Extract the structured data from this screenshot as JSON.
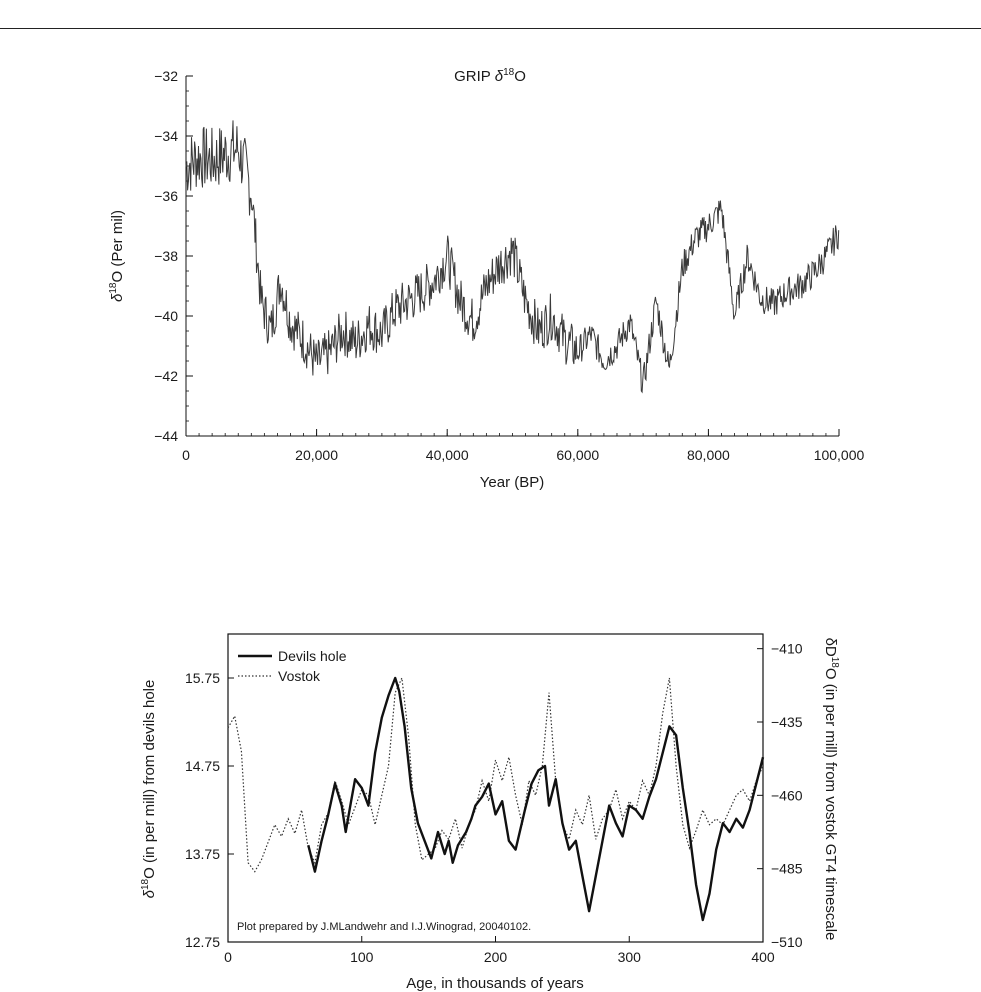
{
  "chart_data": [
    {
      "type": "line",
      "title": "GRIP δ18O",
      "title_parts": {
        "pre": "GRIP ",
        "delta": "δ",
        "sup": "18",
        "post": "O"
      },
      "xlabel": "Year (BP)",
      "ylabel": "δ18O (Per mil)",
      "ylabel_parts": {
        "delta": "δ",
        "sup": "18",
        "post": "O (Per mil)"
      },
      "xlim": [
        0,
        100000
      ],
      "ylim": [
        -44,
        -32
      ],
      "xticks": [
        0,
        20000,
        40000,
        60000,
        80000,
        100000
      ],
      "xtick_labels": [
        "0",
        "20,000",
        "40,000",
        "60,000",
        "80,000",
        "100,000"
      ],
      "yticks": [
        -32,
        -34,
        -36,
        -38,
        -40,
        -42,
        -44
      ],
      "ytick_labels": [
        "−32",
        "−34",
        "−36",
        "−38",
        "−40",
        "−42",
        "−44"
      ],
      "grid": false,
      "line_color": "#3a3a3a",
      "series": [
        {
          "x": [
            0,
            2000,
            4000,
            6000,
            8000,
            10000,
            11500,
            13000,
            14500,
            16000,
            18000,
            20000,
            22000,
            24000,
            26000,
            28000,
            30000,
            32000,
            34000,
            36000,
            38000,
            40000,
            42000,
            44000,
            46000,
            48000,
            50000,
            52000,
            54000,
            56000,
            58000,
            60000,
            62000,
            64000,
            66000,
            68000,
            70000,
            72000,
            74000,
            76000,
            78000,
            80000,
            82000,
            84000,
            86000,
            88000,
            90000,
            92000,
            94000,
            96000,
            98000,
            100000
          ],
          "y": [
            -35.0,
            -34.7,
            -34.8,
            -34.6,
            -34.4,
            -35.8,
            -39.5,
            -40.5,
            -38.8,
            -40.2,
            -40.8,
            -41.6,
            -41.2,
            -40.5,
            -40.9,
            -40.3,
            -40.6,
            -39.8,
            -39.5,
            -39.2,
            -38.8,
            -38.0,
            -39.5,
            -40.2,
            -39.0,
            -38.3,
            -37.8,
            -39.5,
            -40.5,
            -40.0,
            -40.8,
            -41.2,
            -40.6,
            -41.5,
            -41.0,
            -40.2,
            -42.3,
            -39.5,
            -41.8,
            -38.4,
            -37.4,
            -37.0,
            -36.4,
            -40.0,
            -38.0,
            -39.4,
            -39.6,
            -39.2,
            -39.0,
            -38.6,
            -38.0,
            -37.2
          ]
        }
      ]
    },
    {
      "type": "line",
      "xlabel": "Age, in thousands of years",
      "ylabel_left": "δ18O (in per mill) from devils hole",
      "ylabel_left_parts": {
        "delta": "δ",
        "sup": "18",
        "post": "O (in per mill) from devils hole"
      },
      "ylabel_right": "δD18O (in per mill) from vostok GT4 timescale",
      "ylabel_right_parts": {
        "pre": "δD",
        "sup": "18",
        "post": "O (in per mill) from vostok GT4 timescale"
      },
      "xlim": [
        0,
        400
      ],
      "ylim_left": [
        12.75,
        16.25
      ],
      "ylim_right": [
        -510,
        -405
      ],
      "xticks": [
        0,
        100,
        200,
        300,
        400
      ],
      "xtick_labels": [
        "0",
        "100",
        "200",
        "300",
        "400"
      ],
      "yticks_left": [
        12.75,
        13.75,
        14.75,
        15.75
      ],
      "ytick_labels_left": [
        "12.75",
        "13.75",
        "14.75",
        "15.75"
      ],
      "yticks_right": [
        -410,
        -435,
        -460,
        -485,
        -510
      ],
      "ytick_labels_right": [
        "−410",
        "−435",
        "−460",
        "−485",
        "−510"
      ],
      "legend_position": "top-left",
      "annotation": "Plot prepared by J.MLandwehr and I.J.Winograd, 20040102.",
      "grid": false,
      "series": [
        {
          "name": "Devils hole",
          "axis": "left",
          "style": "solid",
          "color": "#111111",
          "x": [
            60,
            65,
            70,
            75,
            80,
            85,
            88,
            92,
            95,
            100,
            105,
            110,
            115,
            120,
            125,
            128,
            132,
            137,
            142,
            147,
            152,
            157,
            162,
            165,
            168,
            172,
            178,
            182,
            185,
            190,
            195,
            200,
            205,
            210,
            215,
            222,
            227,
            232,
            237,
            240,
            245,
            250,
            255,
            260,
            265,
            270,
            275,
            280,
            285,
            290,
            295,
            300,
            305,
            310,
            315,
            320,
            325,
            330,
            335,
            340,
            345,
            350,
            355,
            360,
            365,
            370,
            375,
            380,
            385,
            390,
            395,
            400
          ],
          "y": [
            13.85,
            13.55,
            13.9,
            14.2,
            14.55,
            14.3,
            14.0,
            14.35,
            14.6,
            14.5,
            14.3,
            14.9,
            15.3,
            15.55,
            15.75,
            15.6,
            15.2,
            14.5,
            14.1,
            13.9,
            13.7,
            14.0,
            13.75,
            13.9,
            13.65,
            13.85,
            14.0,
            14.15,
            14.3,
            14.4,
            14.55,
            14.2,
            14.35,
            13.9,
            13.8,
            14.25,
            14.55,
            14.7,
            14.75,
            14.3,
            14.6,
            14.1,
            13.8,
            13.9,
            13.5,
            13.1,
            13.5,
            13.9,
            14.3,
            14.1,
            13.95,
            14.3,
            14.25,
            14.15,
            14.4,
            14.6,
            14.9,
            15.2,
            15.1,
            14.5,
            14.0,
            13.4,
            13.0,
            13.3,
            13.8,
            14.1,
            14.0,
            14.15,
            14.05,
            14.25,
            14.55,
            14.85
          ]
        },
        {
          "name": "Vostok",
          "axis": "right",
          "style": "dotted",
          "color": "#333333",
          "x": [
            0,
            5,
            10,
            15,
            20,
            25,
            30,
            35,
            40,
            45,
            50,
            55,
            60,
            65,
            70,
            75,
            80,
            85,
            90,
            95,
            100,
            105,
            110,
            115,
            120,
            125,
            130,
            135,
            140,
            145,
            150,
            155,
            160,
            165,
            170,
            175,
            180,
            185,
            190,
            195,
            200,
            205,
            210,
            215,
            220,
            225,
            230,
            235,
            240,
            245,
            250,
            255,
            260,
            265,
            270,
            275,
            280,
            285,
            290,
            295,
            300,
            305,
            310,
            315,
            320,
            325,
            330,
            335,
            340,
            345,
            350,
            355,
            360,
            365,
            370,
            375,
            380,
            385,
            390,
            395,
            400
          ],
          "y": [
            -437,
            -433,
            -445,
            -483,
            -486,
            -482,
            -476,
            -470,
            -474,
            -468,
            -473,
            -465,
            -478,
            -483,
            -470,
            -466,
            -455,
            -462,
            -470,
            -464,
            -458,
            -460,
            -470,
            -460,
            -450,
            -425,
            -420,
            -440,
            -470,
            -482,
            -480,
            -478,
            -472,
            -475,
            -468,
            -478,
            -470,
            -465,
            -455,
            -462,
            -448,
            -455,
            -447,
            -460,
            -470,
            -455,
            -460,
            -450,
            -425,
            -455,
            -470,
            -475,
            -465,
            -470,
            -460,
            -475,
            -468,
            -465,
            -458,
            -468,
            -462,
            -465,
            -455,
            -460,
            -450,
            -432,
            -420,
            -450,
            -470,
            -478,
            -472,
            -465,
            -470,
            -468,
            -470,
            -465,
            -460,
            -458,
            -462,
            -455,
            -450
          ]
        }
      ]
    }
  ]
}
